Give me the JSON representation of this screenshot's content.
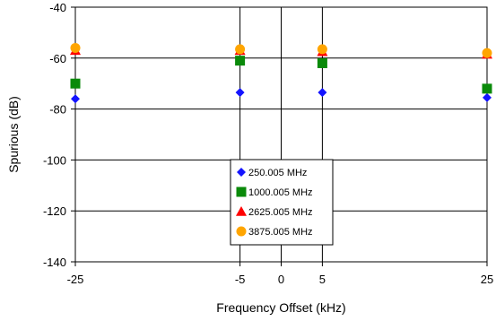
{
  "chart_data": {
    "type": "scatter",
    "title": "",
    "xlabel": "Frequency Offset (kHz)",
    "ylabel": "Spurious (dB)",
    "xlim": [
      -25,
      25
    ],
    "ylim": [
      -140,
      -40
    ],
    "xticks": [
      -25,
      -5,
      0,
      5,
      25
    ],
    "yticks": [
      -140,
      -120,
      -100,
      -80,
      -60,
      -40
    ],
    "xtick_labels": [
      "-25",
      "-5",
      "0",
      "5",
      "25"
    ],
    "ytick_labels": [
      "-140",
      "-120",
      "-100",
      "-80",
      "-60",
      "-40"
    ],
    "grid": true,
    "legend_position": "bottom-center",
    "series": [
      {
        "name": "250.005 MHz",
        "marker": "diamond",
        "color": "#1414ff",
        "x": [
          -25,
          -5,
          5,
          25
        ],
        "y": [
          -76,
          -73.5,
          -73.5,
          -75.5
        ]
      },
      {
        "name": "1000.005 MHz",
        "marker": "square",
        "color": "#0a8a0a",
        "x": [
          -25,
          -5,
          5,
          25
        ],
        "y": [
          -70,
          -61,
          -62,
          -72
        ]
      },
      {
        "name": "2625.005 MHz",
        "marker": "triangle",
        "color": "#ff0000",
        "x": [
          -25,
          -5,
          5,
          25
        ],
        "y": [
          -57,
          -57,
          -57.5,
          -58.5
        ]
      },
      {
        "name": "3875.005 MHz",
        "marker": "circle",
        "color": "#ffa500",
        "x": [
          -25,
          -5,
          5,
          25
        ],
        "y": [
          -56,
          -56.5,
          -56.5,
          -58
        ]
      }
    ]
  }
}
